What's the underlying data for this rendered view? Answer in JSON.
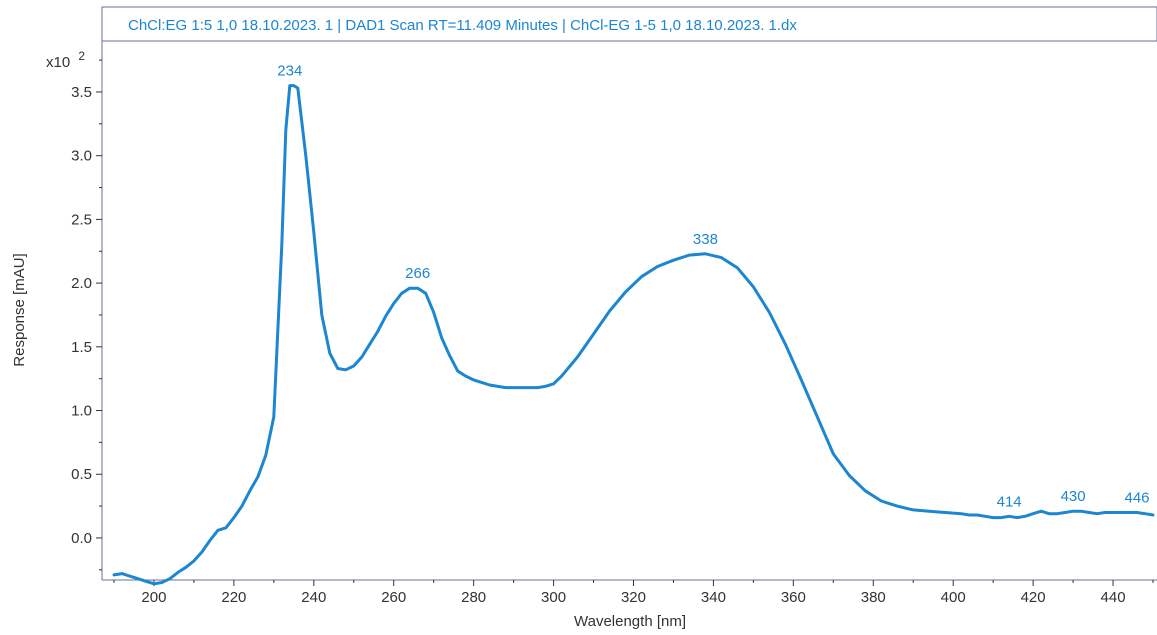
{
  "chart_data": {
    "type": "line",
    "title": "ChCl:EG 1:5 1,0 18.10.2023. 1 | DAD1 Scan RT=11.409 Minutes | ChCl-EG 1-5 1,0 18.10.2023. 1.dx",
    "xlabel": "Wavelength [nm]",
    "ylabel": "Response [mAU]",
    "y_multiplier": "x10",
    "y_multiplier_exp": "2",
    "xlim": [
      187,
      451
    ],
    "ylim": [
      -0.33,
      3.9
    ],
    "x_ticks": [
      200,
      220,
      240,
      260,
      280,
      300,
      320,
      340,
      360,
      380,
      400,
      420,
      440
    ],
    "y_ticks": [
      0.0,
      0.5,
      1.0,
      1.5,
      2.0,
      2.5,
      3.0,
      3.5
    ],
    "y_tick_labels": [
      "0.0",
      "0.5",
      "1.0",
      "1.5",
      "2.0",
      "2.5",
      "3.0",
      "3.5"
    ],
    "grid": false,
    "colors": {
      "line": "#1c86d1",
      "peak_label": "#1c86d1",
      "title": "#1c86d1",
      "frame": "#6d6d9a"
    },
    "series": [
      {
        "x": [
          190,
          192,
          194,
          196,
          198,
          200,
          202,
          204,
          206,
          208,
          210,
          212,
          214,
          216,
          218,
          220,
          222,
          224,
          226,
          228,
          230,
          232,
          233,
          234,
          235,
          236,
          238,
          240,
          242,
          244,
          246,
          248,
          250,
          252,
          254,
          256,
          258,
          260,
          262,
          264,
          266,
          268,
          270,
          272,
          274,
          276,
          278,
          280,
          284,
          288,
          292,
          296,
          298,
          300,
          302,
          306,
          310,
          314,
          318,
          322,
          326,
          330,
          334,
          338,
          342,
          346,
          350,
          354,
          358,
          362,
          366,
          370,
          374,
          378,
          382,
          386,
          390,
          394,
          398,
          402,
          404,
          406,
          408,
          410,
          412,
          414,
          416,
          418,
          420,
          422,
          424,
          426,
          428,
          430,
          432,
          434,
          436,
          438,
          440,
          442,
          444,
          446,
          448,
          450
        ],
        "y": [
          -0.29,
          -0.28,
          -0.3,
          -0.32,
          -0.34,
          -0.36,
          -0.35,
          -0.32,
          -0.27,
          -0.23,
          -0.18,
          -0.11,
          -0.02,
          0.06,
          0.08,
          0.16,
          0.25,
          0.37,
          0.48,
          0.65,
          0.95,
          2.3,
          3.2,
          3.55,
          3.55,
          3.53,
          3.0,
          2.4,
          1.75,
          1.45,
          1.33,
          1.32,
          1.35,
          1.42,
          1.52,
          1.62,
          1.74,
          1.84,
          1.92,
          1.96,
          1.96,
          1.92,
          1.77,
          1.57,
          1.43,
          1.31,
          1.27,
          1.24,
          1.2,
          1.18,
          1.18,
          1.18,
          1.19,
          1.21,
          1.27,
          1.42,
          1.6,
          1.78,
          1.93,
          2.05,
          2.13,
          2.18,
          2.22,
          2.23,
          2.2,
          2.12,
          1.97,
          1.77,
          1.52,
          1.24,
          0.95,
          0.66,
          0.49,
          0.37,
          0.29,
          0.25,
          0.22,
          0.21,
          0.2,
          0.19,
          0.18,
          0.18,
          0.17,
          0.16,
          0.16,
          0.17,
          0.16,
          0.17,
          0.19,
          0.21,
          0.19,
          0.19,
          0.2,
          0.21,
          0.21,
          0.2,
          0.19,
          0.2,
          0.2,
          0.2,
          0.2,
          0.2,
          0.19,
          0.18
        ]
      }
    ],
    "annotations": [
      {
        "label": "234",
        "x": 234,
        "y": 3.55
      },
      {
        "label": "266",
        "x": 266,
        "y": 1.96
      },
      {
        "label": "338",
        "x": 338,
        "y": 2.23
      },
      {
        "label": "414",
        "x": 414,
        "y": 0.17
      },
      {
        "label": "430",
        "x": 430,
        "y": 0.21
      },
      {
        "label": "446",
        "x": 446,
        "y": 0.2
      }
    ]
  }
}
